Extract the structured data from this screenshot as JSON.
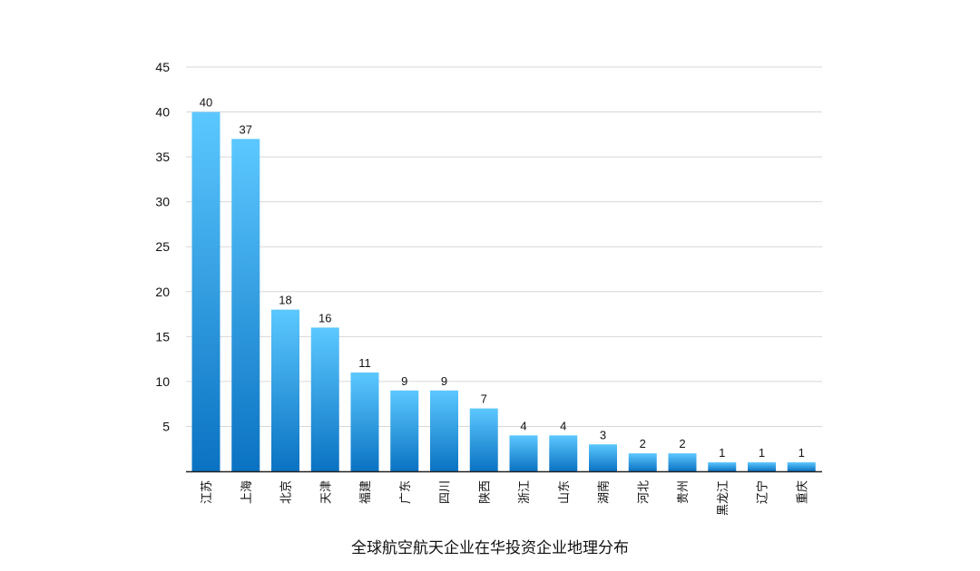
{
  "chart_data": {
    "type": "bar",
    "title": "全球航空航天企业在华投资企业地理分布",
    "xlabel": "",
    "ylabel": "",
    "categories": [
      "江苏",
      "上海",
      "北京",
      "天津",
      "福建",
      "广东",
      "四川",
      "陕西",
      "浙江",
      "山东",
      "湖南",
      "河北",
      "贵州",
      "黑龙江",
      "辽宁",
      "重庆"
    ],
    "values": [
      40,
      37,
      18,
      16,
      11,
      9,
      9,
      7,
      4,
      4,
      3,
      2,
      2,
      1,
      1,
      1
    ],
    "ylim": [
      0,
      45
    ],
    "yticks": [
      5,
      10,
      15,
      20,
      25,
      30,
      35,
      40,
      45
    ],
    "grid": true,
    "bar_color_top": "#5cc8ff",
    "bar_color_bottom": "#0a72c2"
  }
}
